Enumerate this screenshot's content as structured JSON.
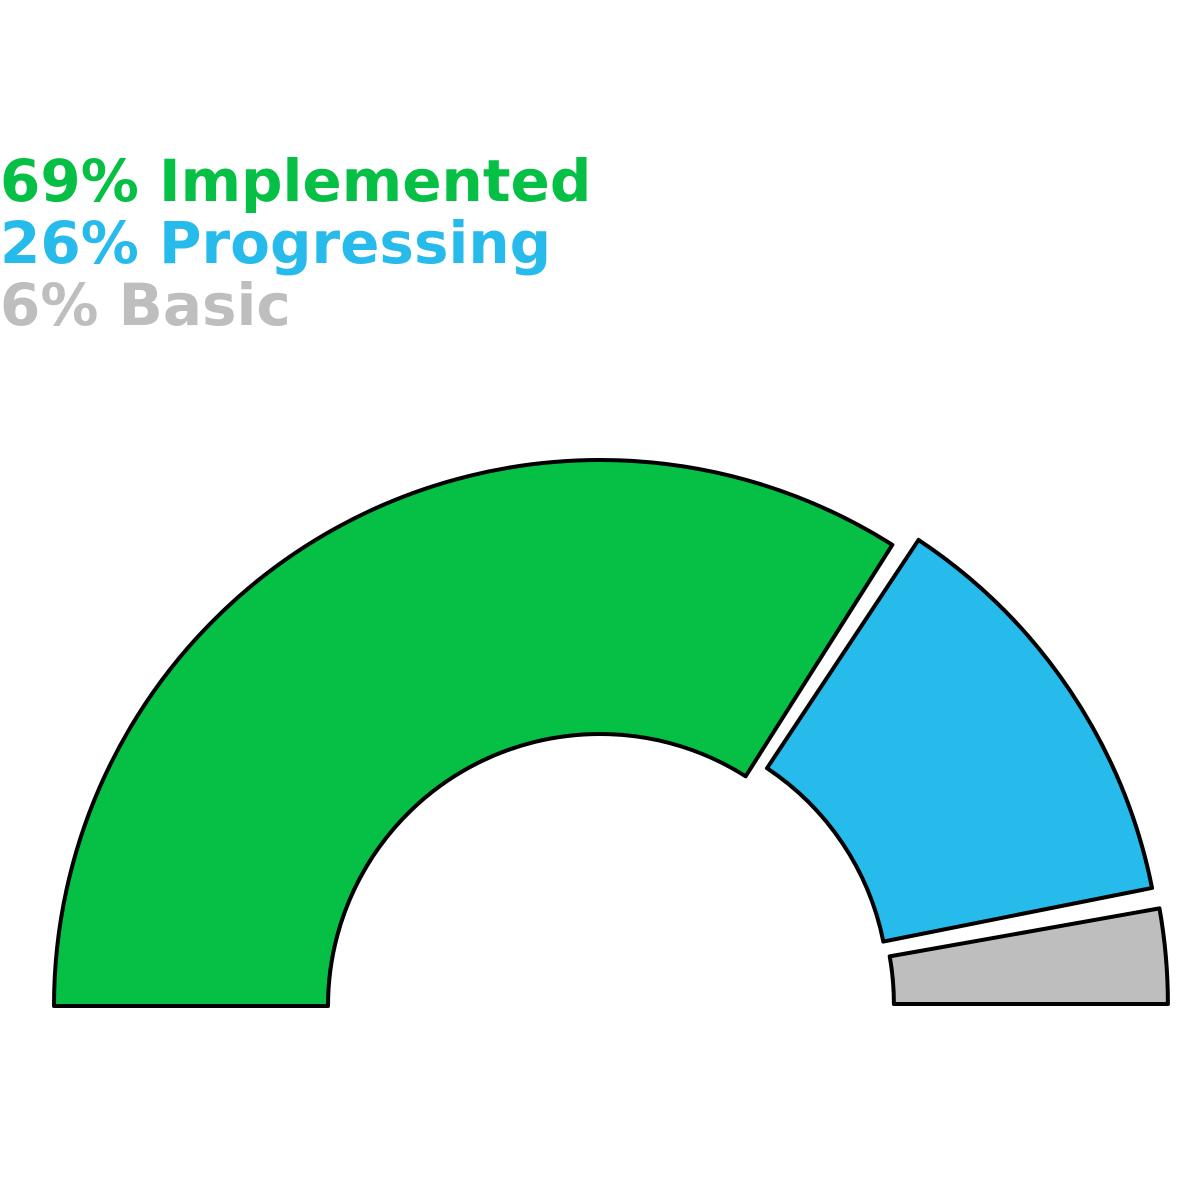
{
  "chart_data": {
    "type": "pie",
    "style": "half-donut",
    "series": [
      {
        "name": "Implemented",
        "value": 69,
        "label": "69% Implemented",
        "color": "#05c044"
      },
      {
        "name": "Progressing",
        "value": 26,
        "label": "26% Progressing",
        "color": "#26bbeb"
      },
      {
        "name": "Basic",
        "value": 6,
        "label": "6% Basic",
        "color": "#bebebe"
      }
    ],
    "legend_position": "top-left"
  }
}
